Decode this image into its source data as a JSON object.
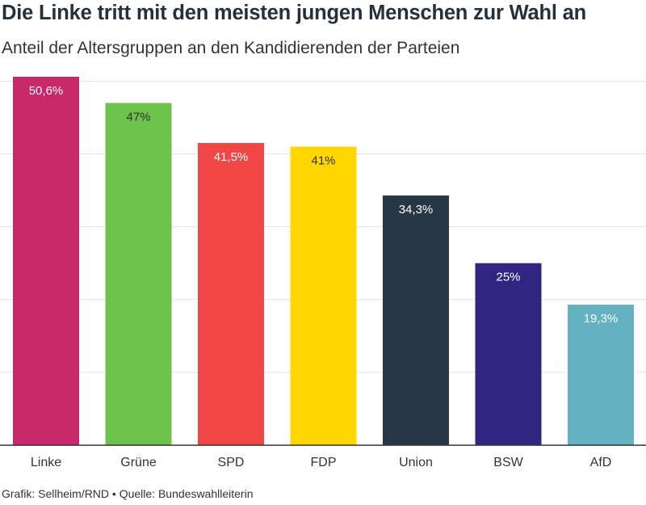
{
  "title": "Die Linke tritt mit den meisten jungen Menschen zur Wahl an",
  "subtitle": "Anteil der Altersgruppen an den Kandidierenden der Parteien",
  "footer": {
    "credit": "Grafik: Sellheim/RND",
    "separator": "•",
    "source": "Quelle: Bundeswahlleiterin"
  },
  "chart_data": {
    "type": "bar",
    "title": "Die Linke tritt mit den meisten jungen Menschen zur Wahl an",
    "subtitle": "Anteil der Altersgruppen an den Kandidierenden der Parteien",
    "categories": [
      "Linke",
      "Grüne",
      "SPD",
      "FDP",
      "Union",
      "BSW",
      "AfD"
    ],
    "values": [
      50.6,
      47,
      41.5,
      41,
      34.3,
      25,
      19.3
    ],
    "data_labels": [
      "50,6%",
      "47%",
      "41,5%",
      "41%",
      "34,3%",
      "25%",
      "19,3%"
    ],
    "colors": [
      "#c8276a",
      "#6cc24a",
      "#f04646",
      "#ffd600",
      "#283746",
      "#302682",
      "#63b1c1"
    ],
    "ylim": [
      0,
      50.6
    ],
    "gridlines": [
      0,
      10,
      20,
      30,
      40,
      50
    ],
    "grid": true,
    "y_tick_labels_visible": false,
    "legend": "none"
  }
}
